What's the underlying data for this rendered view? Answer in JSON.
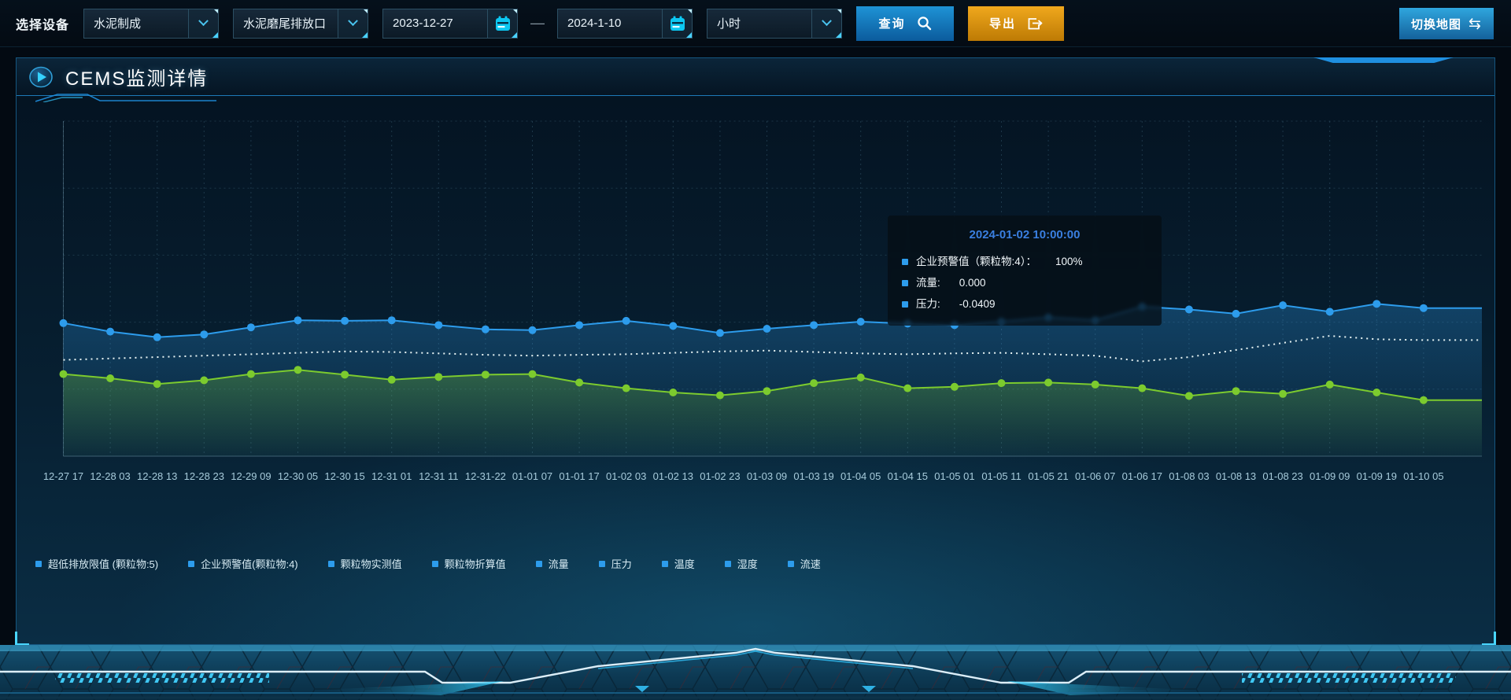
{
  "toolbar": {
    "device_label": "选择设备",
    "select_process": {
      "value": "水泥制成"
    },
    "select_outlet": {
      "value": "水泥磨尾排放口"
    },
    "date_start": "2023-12-27",
    "date_separator": "—",
    "date_end": "2024-1-10",
    "select_interval": {
      "value": "小时"
    },
    "query_label": "查询",
    "export_label": "导出",
    "switch_map_label": "切换地图"
  },
  "panel": {
    "title": "CEMS监测详情"
  },
  "tooltip": {
    "title": "2024-01-02 10:00:00",
    "title_color": "#3a7fe0",
    "marker_color": "#2d9cec",
    "rows": [
      {
        "label": "企业预警值（颗粒物:4）：",
        "value": "100%"
      },
      {
        "label": "流量:",
        "value": "0.000"
      },
      {
        "label": "压力:",
        "value": "-0.0409"
      }
    ]
  },
  "legend": {
    "marker_color": "#2d9cec",
    "items": [
      "超低排放限值 (颗粒物:5)",
      "企业预警值(颗粒物:4)",
      "颗粒物实测值",
      "颗粒物折算值",
      "流量",
      "压力",
      "温度",
      "湿度",
      "流速"
    ]
  },
  "chart_data": {
    "type": "line",
    "title": "CEMS监测详情",
    "xlabel": "",
    "ylabel": "",
    "ylim": [
      0,
      120
    ],
    "grid": true,
    "legend_position": "bottom",
    "categories": [
      "12-27 17",
      "12-28 03",
      "12-28 13",
      "12-28 23",
      "12-29 09",
      "12-30 05",
      "12-30 15",
      "12-31 01",
      "12-31 11",
      "12-31-22",
      "01-01 07",
      "01-01 17",
      "01-02 03",
      "01-02 13",
      "01-02 23",
      "01-03 09",
      "01-03 19",
      "01-04 05",
      "01-04 15",
      "01-05 01",
      "01-05 11",
      "01-05 21",
      "01-06 07",
      "01-06 17",
      "01-08 03",
      "01-08 13",
      "01-08 23",
      "01-09 09",
      "01-09 19",
      "01-10 05"
    ],
    "series": [
      {
        "name": "企业预警值(颗粒物:4)",
        "color": "#2d9cec",
        "style": "solid",
        "markers": true,
        "area": true,
        "values": [
          47.0,
          44.0,
          42.0,
          43.0,
          45.5,
          48.0,
          47.8,
          48.0,
          46.3,
          44.8,
          44.5,
          46.3,
          47.8,
          46.0,
          43.5,
          45.0,
          46.3,
          47.5,
          46.8,
          46.3,
          47.5,
          49.0,
          48.0,
          52.8,
          51.8,
          50.3,
          53.3,
          51.0,
          53.8,
          52.3
        ]
      },
      {
        "name": "流量",
        "color": "#e8f4f4",
        "style": "dotted",
        "markers": false,
        "area": false,
        "values": [
          34.0,
          34.5,
          35.0,
          35.5,
          36.0,
          36.5,
          37.0,
          36.8,
          36.3,
          35.8,
          35.5,
          35.8,
          36.0,
          36.5,
          37.0,
          37.3,
          36.8,
          36.3,
          36.0,
          36.3,
          36.5,
          36.0,
          35.5,
          33.5,
          35.0,
          37.5,
          40.0,
          42.5,
          41.3,
          41.0
        ]
      },
      {
        "name": "压力",
        "color": "#7ccb2e",
        "style": "solid",
        "markers": true,
        "area": true,
        "values": [
          29.0,
          27.5,
          25.5,
          26.8,
          29.0,
          30.5,
          28.8,
          27.0,
          28.0,
          28.8,
          29.0,
          26.0,
          24.0,
          22.5,
          21.5,
          23.0,
          25.8,
          27.8,
          24.0,
          24.5,
          25.8,
          26.0,
          25.3,
          24.0,
          21.3,
          23.0,
          22.0,
          25.3,
          22.5,
          19.8
        ]
      }
    ]
  },
  "colors": {
    "accent": "#2d9cec",
    "calendar_icon": "#0cc8f2",
    "query_button": "#1583c8",
    "export_button": "#e09c10",
    "grid_line": "#3d6b82"
  }
}
